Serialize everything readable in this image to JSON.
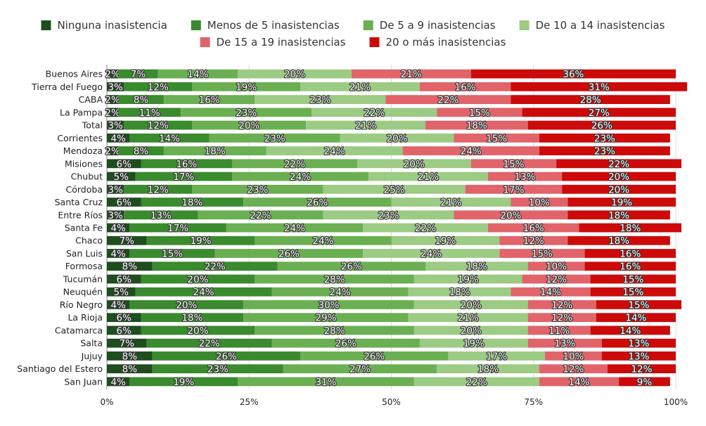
{
  "chart_data": {
    "type": "bar",
    "orientation": "horizontal",
    "stacked": "percent",
    "legend_position": "top",
    "grid": true,
    "xlim": [
      0,
      100
    ],
    "xticks": [
      "0%",
      "25%",
      "50%",
      "75%",
      "100%"
    ],
    "series": [
      {
        "name": "Ninguna inasistencia",
        "color": "#1e4d1e",
        "values": [
          2,
          3,
          2,
          2,
          3,
          4,
          2,
          6,
          5,
          3,
          6,
          3,
          4,
          7,
          4,
          8,
          6,
          5,
          4,
          6,
          6,
          7,
          8,
          8,
          4
        ]
      },
      {
        "name": "Menos de 5 inasistencias",
        "color": "#3a8a2e",
        "values": [
          7,
          12,
          8,
          11,
          12,
          14,
          8,
          16,
          17,
          12,
          18,
          13,
          17,
          19,
          15,
          22,
          20,
          24,
          20,
          18,
          20,
          22,
          26,
          23,
          19
        ]
      },
      {
        "name": "De 5 a 9 inasistencias",
        "color": "#6aaf52",
        "values": [
          14,
          19,
          16,
          23,
          20,
          23,
          18,
          22,
          24,
          23,
          26,
          22,
          24,
          24,
          26,
          26,
          28,
          24,
          30,
          29,
          28,
          26,
          26,
          27,
          31
        ]
      },
      {
        "name": "De 10 a 14 inasistencias",
        "color": "#9ccb84",
        "values": [
          20,
          21,
          23,
          22,
          21,
          20,
          24,
          20,
          21,
          25,
          21,
          23,
          22,
          19,
          24,
          18,
          19,
          18,
          20,
          21,
          20,
          19,
          17,
          18,
          22
        ]
      },
      {
        "name": "De 15 a 19 inasistencias",
        "color": "#e0646a",
        "values": [
          21,
          16,
          22,
          15,
          18,
          15,
          24,
          15,
          13,
          17,
          10,
          20,
          16,
          12,
          15,
          10,
          12,
          14,
          12,
          12,
          11,
          13,
          10,
          12,
          14
        ]
      },
      {
        "name": "20 o más inasistencias",
        "color": "#cc0a0a",
        "values": [
          36,
          31,
          28,
          27,
          26,
          23,
          23,
          22,
          20,
          20,
          19,
          18,
          18,
          18,
          16,
          16,
          15,
          15,
          15,
          14,
          14,
          13,
          13,
          12,
          9
        ]
      }
    ],
    "categories": [
      "Buenos Aires",
      "Tierra del Fuego",
      "CABA",
      "La Pampa",
      "Total",
      "Corrientes",
      "Mendoza",
      "Misiones",
      "Chubut",
      "Córdoba",
      "Santa Cruz",
      "Entre Ríos",
      "Santa Fe",
      "Chaco",
      "San Luis",
      "Formosa",
      "Tucumán",
      "Neuquén",
      "Río Negro",
      "La Rioja",
      "Catamarca",
      "Salta",
      "Jujuy",
      "Santiago del Estero",
      "San Juan"
    ]
  }
}
